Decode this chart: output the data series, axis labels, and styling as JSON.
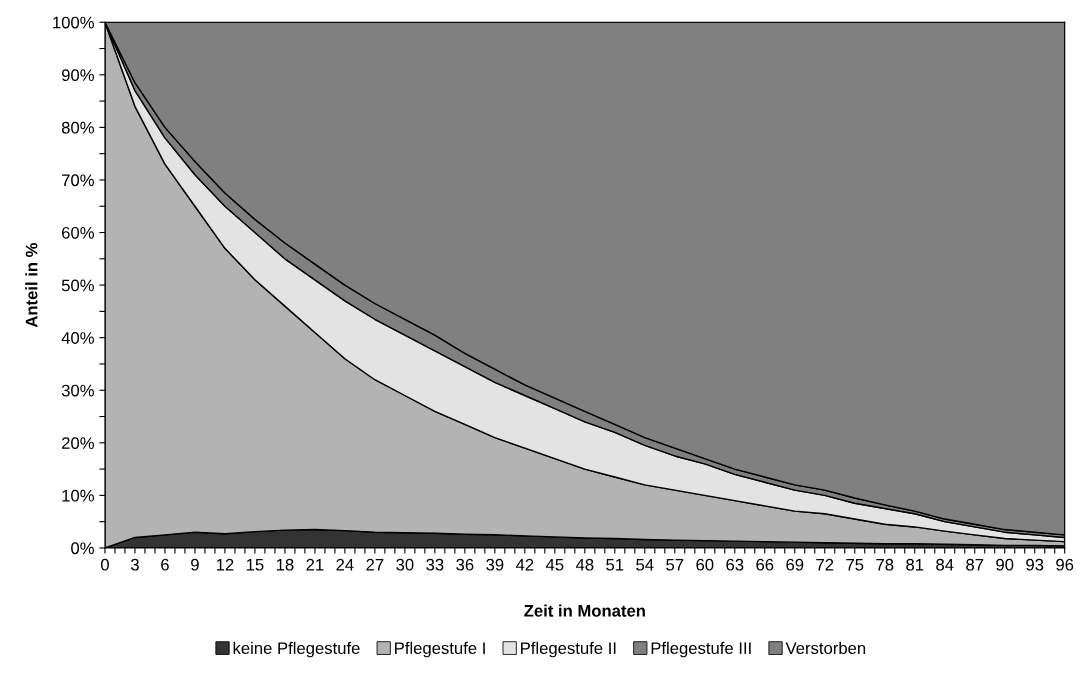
{
  "chart_data": {
    "type": "area",
    "stacked": true,
    "xlabel": "Zeit in Monaten",
    "ylabel": "Anteil in %",
    "x": [
      0,
      3,
      6,
      9,
      12,
      15,
      18,
      21,
      24,
      27,
      30,
      33,
      36,
      39,
      42,
      45,
      48,
      51,
      54,
      57,
      60,
      63,
      66,
      69,
      72,
      75,
      78,
      81,
      84,
      87,
      90,
      93,
      96
    ],
    "series": [
      {
        "name": "keine Pflegestufe",
        "color": "#333333",
        "values": [
          0,
          2,
          2.5,
          3,
          2.7,
          3.1,
          3.4,
          3.5,
          3.3,
          3,
          2.9,
          2.8,
          2.6,
          2.5,
          2.3,
          2.1,
          1.9,
          1.8,
          1.6,
          1.5,
          1.4,
          1.3,
          1.2,
          1.1,
          1,
          0.9,
          0.8,
          0.8,
          0.7,
          0.6,
          0.5,
          0.5,
          0.4
        ]
      },
      {
        "name": "Pflegestufe I",
        "color": "#b3b3b3",
        "values": [
          100,
          82,
          70.5,
          62,
          54.3,
          47.9,
          42.6,
          37.5,
          32.7,
          29,
          26.1,
          23.2,
          20.9,
          18.5,
          16.7,
          14.9,
          13.1,
          11.7,
          10.4,
          9.5,
          8.6,
          7.7,
          6.8,
          5.9,
          5.5,
          4.6,
          3.7,
          3.2,
          2.5,
          1.9,
          1.3,
          1,
          0.8
        ]
      },
      {
        "name": "Pflegestufe II",
        "color": "#e3e3e3",
        "values": [
          0,
          3,
          5,
          6,
          8,
          9,
          9,
          10,
          11,
          11.5,
          11.5,
          11.5,
          11,
          10.5,
          10,
          9.5,
          9,
          8.5,
          7.5,
          6.5,
          6,
          5,
          4.5,
          4,
          3.5,
          3,
          3,
          2.5,
          1.8,
          1.5,
          1.2,
          1,
          0.8
        ]
      },
      {
        "name": "Pflegestufe III",
        "color": "#808080",
        "values": [
          0,
          1.5,
          2,
          2.5,
          2.5,
          2.5,
          3,
          3,
          3,
          3,
          3,
          3,
          2.5,
          2.5,
          2,
          2,
          2,
          1.5,
          1.5,
          1.5,
          1,
          1,
          1,
          1,
          1,
          1,
          0.7,
          0.5,
          0.5,
          0.5,
          0.5,
          0.5,
          0.5
        ]
      },
      {
        "name": "Verstorben",
        "color": "#808080",
        "values": [
          0,
          11.5,
          20,
          26.5,
          32.5,
          37.5,
          42,
          46,
          50,
          53.5,
          56.5,
          59.5,
          63,
          66,
          69,
          71.5,
          74,
          76.5,
          79,
          81,
          83,
          85,
          86.5,
          88,
          89,
          90.5,
          91.8,
          93,
          94.5,
          95.5,
          96.5,
          97,
          97.5
        ]
      }
    ],
    "xlim": [
      0,
      96
    ],
    "xticks": [
      0,
      {
        "value": 1,
        "label": null
      },
      {
        "value": 2,
        "label": null
      },
      3,
      {
        "value": 4,
        "label": null
      },
      {
        "value": 5,
        "label": null
      },
      6,
      {
        "value": 7,
        "label": null
      },
      {
        "value": 8,
        "label": null
      },
      9,
      {
        "value": 10,
        "label": null
      },
      {
        "value": 11,
        "label": null
      },
      12,
      {
        "value": 13,
        "label": null
      },
      {
        "value": 14,
        "label": null
      },
      15,
      {
        "value": 16,
        "label": null
      },
      {
        "value": 17,
        "label": null
      },
      18,
      {
        "value": 19,
        "label": null
      },
      {
        "value": 20,
        "label": null
      },
      21,
      {
        "value": 22,
        "label": null
      },
      {
        "value": 23,
        "label": null
      },
      24,
      {
        "value": 25,
        "label": null
      },
      {
        "value": 26,
        "label": null
      },
      27,
      {
        "value": 28,
        "label": null
      },
      {
        "value": 29,
        "label": null
      },
      30,
      {
        "value": 31,
        "label": null
      },
      {
        "value": 32,
        "label": null
      },
      33,
      {
        "value": 34,
        "label": null
      },
      {
        "value": 35,
        "label": null
      },
      36,
      {
        "value": 37,
        "label": null
      },
      {
        "value": 38,
        "label": null
      },
      39,
      {
        "value": 40,
        "label": null
      },
      {
        "value": 41,
        "label": null
      },
      42,
      {
        "value": 43,
        "label": null
      },
      {
        "value": 44,
        "label": null
      },
      45,
      {
        "value": 46,
        "label": null
      },
      {
        "value": 47,
        "label": null
      },
      48,
      {
        "value": 49,
        "label": null
      },
      {
        "value": 50,
        "label": null
      },
      51,
      {
        "value": 52,
        "label": null
      },
      {
        "value": 53,
        "label": null
      },
      54,
      {
        "value": 55,
        "label": null
      },
      {
        "value": 56,
        "label": null
      },
      57,
      {
        "value": 58,
        "label": null
      },
      {
        "value": 59,
        "label": null
      },
      60,
      {
        "value": 61,
        "label": null
      },
      {
        "value": 62,
        "label": null
      },
      63,
      {
        "value": 64,
        "label": null
      },
      {
        "value": 65,
        "label": null
      },
      66,
      {
        "value": 67,
        "label": null
      },
      {
        "value": 68,
        "label": null
      },
      69,
      {
        "value": 70,
        "label": null
      },
      {
        "value": 71,
        "label": null
      },
      72,
      {
        "value": 73,
        "label": null
      },
      {
        "value": 74,
        "label": null
      },
      75,
      {
        "value": 76,
        "label": null
      },
      {
        "value": 77,
        "label": null
      },
      78,
      {
        "value": 79,
        "label": null
      },
      {
        "value": 80,
        "label": null
      },
      81,
      {
        "value": 82,
        "label": null
      },
      {
        "value": 83,
        "label": null
      },
      84,
      {
        "value": 85,
        "label": null
      },
      {
        "value": 86,
        "label": null
      },
      87,
      {
        "value": 88,
        "label": null
      },
      {
        "value": 89,
        "label": null
      },
      90,
      {
        "value": 91,
        "label": null
      },
      {
        "value": 92,
        "label": null
      },
      93,
      {
        "value": 94,
        "label": null
      },
      {
        "value": 95,
        "label": null
      },
      96
    ],
    "ylim": [
      0,
      100
    ],
    "yticks": [
      {
        "value": 0,
        "label": "0%"
      },
      {
        "value": 5,
        "label": null
      },
      {
        "value": 10,
        "label": "10%"
      },
      {
        "value": 15,
        "label": null
      },
      {
        "value": 20,
        "label": "20%"
      },
      {
        "value": 25,
        "label": null
      },
      {
        "value": 30,
        "label": "30%"
      },
      {
        "value": 35,
        "label": null
      },
      {
        "value": 40,
        "label": "40%"
      },
      {
        "value": 45,
        "label": null
      },
      {
        "value": 50,
        "label": "50%"
      },
      {
        "value": 55,
        "label": null
      },
      {
        "value": 60,
        "label": "60%"
      },
      {
        "value": 65,
        "label": null
      },
      {
        "value": 70,
        "label": "70%"
      },
      {
        "value": 75,
        "label": null
      },
      {
        "value": 80,
        "label": "80%"
      },
      {
        "value": 85,
        "label": null
      },
      {
        "value": 90,
        "label": "90%"
      },
      {
        "value": 95,
        "label": null
      },
      {
        "value": 100,
        "label": "100%"
      }
    ],
    "grid": false,
    "legend": "bottom"
  }
}
